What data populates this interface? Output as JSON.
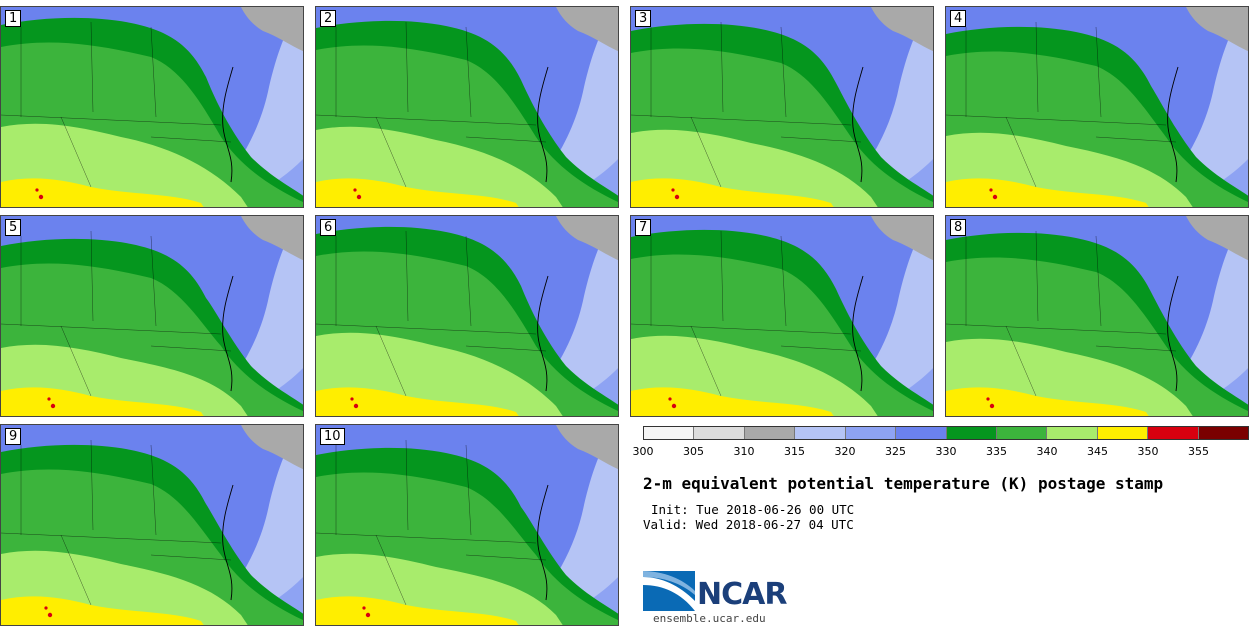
{
  "figure": {
    "title": "2-m equivalent potential temperature (K) postage stamp",
    "init": "Init: Tue 2018-06-26 00 UTC",
    "valid": "Valid: Wed 2018-06-27 04 UTC",
    "logo": {
      "name": "NCAR",
      "url": "ensemble.ucar.edu"
    }
  },
  "panels": [
    {
      "label": "1"
    },
    {
      "label": "2"
    },
    {
      "label": "3"
    },
    {
      "label": "4"
    },
    {
      "label": "5"
    },
    {
      "label": "6"
    },
    {
      "label": "7"
    },
    {
      "label": "8"
    },
    {
      "label": "9"
    },
    {
      "label": "10"
    }
  ],
  "colorbar": {
    "ticks": [
      "300",
      "305",
      "310",
      "315",
      "320",
      "325",
      "330",
      "335",
      "340",
      "345",
      "350",
      "355"
    ],
    "colors": [
      "#f5f5f5",
      "#dcdcdc",
      "#a9a9a9",
      "#b5c4f5",
      "#8ea3f3",
      "#6b82ee",
      "#05961e",
      "#3cb43c",
      "#a8ec6c",
      "#ffee00",
      "#d7000f",
      "#7a0000"
    ]
  },
  "map_colors": {
    "ocean_far": "#b5c4f5",
    "ocean_near": "#8ea3f3",
    "cool": "#6b82ee",
    "dark_green": "#05961e",
    "green": "#3cb43c",
    "light_green": "#a8ec6c",
    "yellow": "#ffee00",
    "red": "#d7000f",
    "land_gray": "#a9a9a9"
  }
}
